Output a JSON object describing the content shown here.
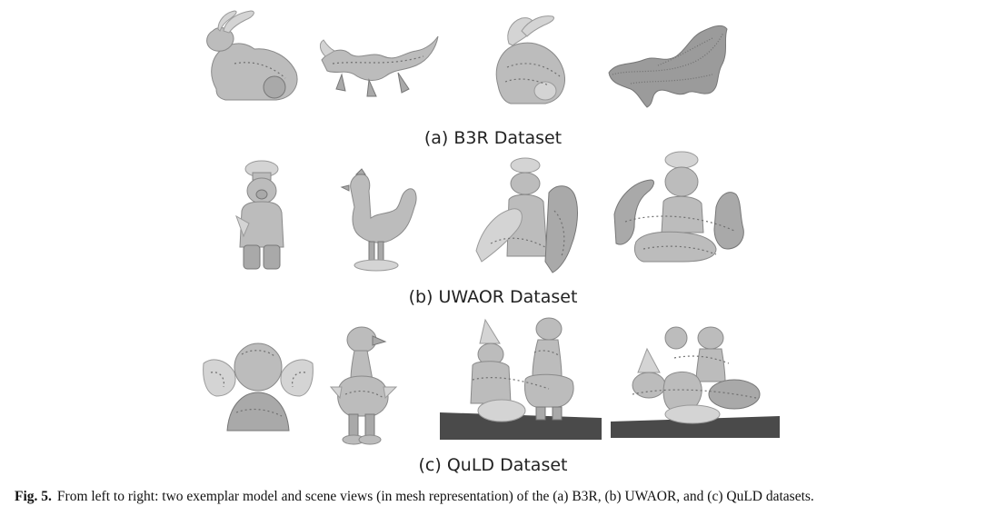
{
  "rows": [
    {
      "label": "(a) B3R Dataset"
    },
    {
      "label": "(b) UWAOR Dataset"
    },
    {
      "label": "(c) QuLD Dataset"
    }
  ],
  "caption": {
    "prefix": "Fig. 5.",
    "text": "From left to right: two exemplar model and scene views (in mesh representation) of the (a) B3R, (b) UWAOR, and (c) QuLD datasets."
  }
}
